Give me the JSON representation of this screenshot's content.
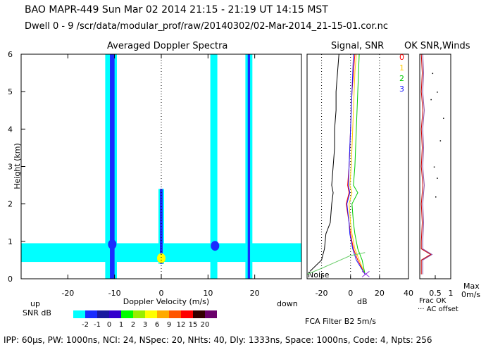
{
  "header": {
    "line1": "BAO  MAPR-449  Sun Mar 02 2014 21:15 - 21:19 UT 14:15 MST",
    "line2": "Dwell  0 -  9   /scr/data/modular_prof/raw/20140302/02-Mar-2014_21-15-01.cor.nc"
  },
  "footer": "IPP: 60μs, PW: 1000ns, NCI: 24, NSpec: 20, NHts: 40, Dly: 1333ns, Space: 1000ns, Code: 4, Npts: 256",
  "colors": {
    "bg": "#ffffff",
    "cyan": "#00ffff",
    "blue": "#1a2cff",
    "darkblue": "#1919a8",
    "snr_traces": [
      "#ff0000",
      "#ffcc00",
      "#00cc00",
      "#1a1aff"
    ],
    "signal_trace": "#000000",
    "noise_line": "#66cc66"
  },
  "chart_data": [
    {
      "type": "heatmap",
      "title": "Averaged Doppler Spectra",
      "xlabel": "Doppler Velocity (m/s)",
      "ylabel": "Height (km)",
      "xlim": [
        -30,
        30
      ],
      "ylim": [
        0,
        6
      ],
      "xticks": [
        -20,
        -10,
        0,
        10,
        20
      ],
      "yticks": [
        0,
        1,
        2,
        3,
        4,
        5,
        6
      ],
      "x_left_label": "up",
      "x_right_label": "down",
      "colorbar": {
        "label": "SNR dB",
        "ticks": [
          "-2",
          "-1",
          "0",
          "1",
          "2",
          "3",
          "6",
          "9",
          "12",
          "15",
          "20"
        ],
        "colors": [
          "#00ffff",
          "#1a2cff",
          "#1a1aa0",
          "#3300cc",
          "#00ff00",
          "#99ee00",
          "#ffff00",
          "#ffaa00",
          "#ff5500",
          "#ff0000",
          "#330000",
          "#6a006a"
        ]
      },
      "vertical_bands": [
        {
          "x": [
            -12,
            -9.5
          ],
          "y": [
            0,
            6
          ],
          "color_index": 0
        },
        {
          "x": [
            -11,
            -10
          ],
          "y": [
            0,
            6
          ],
          "color_index": 1
        },
        {
          "x": [
            10.5,
            12
          ],
          "y": [
            0,
            6
          ],
          "color_index": 0
        },
        {
          "x": [
            18,
            19.5
          ],
          "y": [
            0,
            6
          ],
          "color_index": 0
        },
        {
          "x": [
            18.5,
            19
          ],
          "y": [
            0,
            6
          ],
          "color_index": 1
        },
        {
          "x": [
            -0.6,
            0.6
          ],
          "y": [
            0.4,
            2.4
          ],
          "color_index": 0
        },
        {
          "x": [
            -0.3,
            0.3
          ],
          "y": [
            0.4,
            2.4
          ],
          "color_index": 1
        }
      ],
      "low_level_band": {
        "x": [
          -30,
          30
        ],
        "y": [
          0.45,
          0.95
        ],
        "color_index": 0
      },
      "blobs": [
        {
          "x": -10.5,
          "y": 0.92,
          "color_index": 1
        },
        {
          "x": 11.5,
          "y": 0.88,
          "color_index": 1
        },
        {
          "x": 0,
          "y": 0.55,
          "color_index": 6
        }
      ]
    },
    {
      "type": "line",
      "title": "Signal, SNR",
      "xlabel": "dB",
      "xlim": [
        -30,
        40
      ],
      "ylim": [
        0,
        6
      ],
      "xticks": [
        -20,
        0,
        20,
        40
      ],
      "annotation": "Noise",
      "dotted_x": [
        -20,
        0,
        20
      ],
      "series": [
        {
          "name": "0",
          "x": [
            3,
            2,
            1,
            0.5,
            0,
            -0.5,
            -1,
            -2,
            -1,
            -3,
            -1,
            0,
            2,
            5,
            10
          ],
          "y": [
            6,
            5.5,
            5,
            4.5,
            4,
            3.5,
            3,
            2.5,
            2.3,
            2,
            1.5,
            1.2,
            0.8,
            0.5,
            0.12
          ]
        },
        {
          "name": "1",
          "x": [
            4,
            3,
            2.5,
            2,
            1.5,
            1,
            0.5,
            -0.5,
            1,
            -1,
            0,
            1,
            3,
            6,
            10
          ],
          "y": [
            6,
            5.5,
            5,
            4.5,
            4,
            3.5,
            3,
            2.5,
            2.3,
            2,
            1.5,
            1.2,
            0.8,
            0.5,
            0.12
          ]
        },
        {
          "name": "2",
          "x": [
            6,
            5.5,
            5,
            4.5,
            4,
            3.5,
            3,
            2,
            5,
            1,
            2,
            3,
            5,
            8,
            10
          ],
          "y": [
            6,
            5.5,
            5,
            4.5,
            4,
            3.5,
            3,
            2.5,
            2.3,
            2,
            1.5,
            1.2,
            0.8,
            0.5,
            0.12
          ]
        },
        {
          "name": "3",
          "x": [
            2,
            1.5,
            1,
            0.5,
            0,
            -0.5,
            -1,
            -1.5,
            -0.5,
            -2.5,
            -1,
            -0.5,
            1.5,
            4,
            10
          ],
          "y": [
            6,
            5.5,
            5,
            4.5,
            4,
            3.5,
            3,
            2.5,
            2.3,
            2,
            1.5,
            1.2,
            0.8,
            0.5,
            0.12
          ]
        },
        {
          "name": "Signal",
          "x": [
            -8,
            -9,
            -10,
            -10,
            -11,
            -11,
            -12,
            -13,
            -12,
            -13,
            -14,
            -17,
            -18,
            -20,
            -28
          ],
          "y": [
            6,
            5.5,
            5,
            4.5,
            4,
            3.5,
            3,
            2.5,
            2.3,
            2,
            1.5,
            1.2,
            0.8,
            0.5,
            0.2
          ]
        },
        {
          "name": "Noise",
          "x": [
            -30,
            -20,
            -10,
            0,
            10
          ],
          "y": [
            0.12,
            0.28,
            0.45,
            0.62,
            0.7
          ]
        }
      ],
      "snr_legend": [
        "0",
        "1",
        "2",
        "3"
      ]
    },
    {
      "type": "line",
      "title": "OK SNR,Winds",
      "xlabel": "Frac OK",
      "xlim": [
        0,
        1
      ],
      "ylim": [
        0,
        6
      ],
      "xticks": [
        "0.5",
        "1"
      ],
      "labels": {
        "max": "Max",
        "max_value": "0m/s",
        "ac_offset": "··· AC offset"
      },
      "series": [
        {
          "name": "ok",
          "x": [
            0.05,
            0.08,
            0.05,
            0.1,
            0.05,
            0.08,
            0.05,
            0.1,
            0.05,
            0.08,
            0.05,
            0.05,
            0.35,
            0.05,
            0.05
          ],
          "y": [
            6,
            5.5,
            5,
            4.5,
            4,
            3.5,
            3,
            2.5,
            2,
            1.5,
            1,
            0.8,
            0.65,
            0.5,
            0.12
          ]
        }
      ],
      "dots": [
        {
          "x": 0.55,
          "y": 5.0
        },
        {
          "x": 0.75,
          "y": 4.3
        },
        {
          "x": 0.65,
          "y": 3.7
        },
        {
          "x": 0.45,
          "y": 3.0
        },
        {
          "x": 0.55,
          "y": 2.7
        },
        {
          "x": 0.5,
          "y": 2.2
        },
        {
          "x": 0.4,
          "y": 5.5
        },
        {
          "x": 0.35,
          "y": 4.8
        }
      ]
    }
  ],
  "filter_label": "FCA Filter B2  5m/s"
}
